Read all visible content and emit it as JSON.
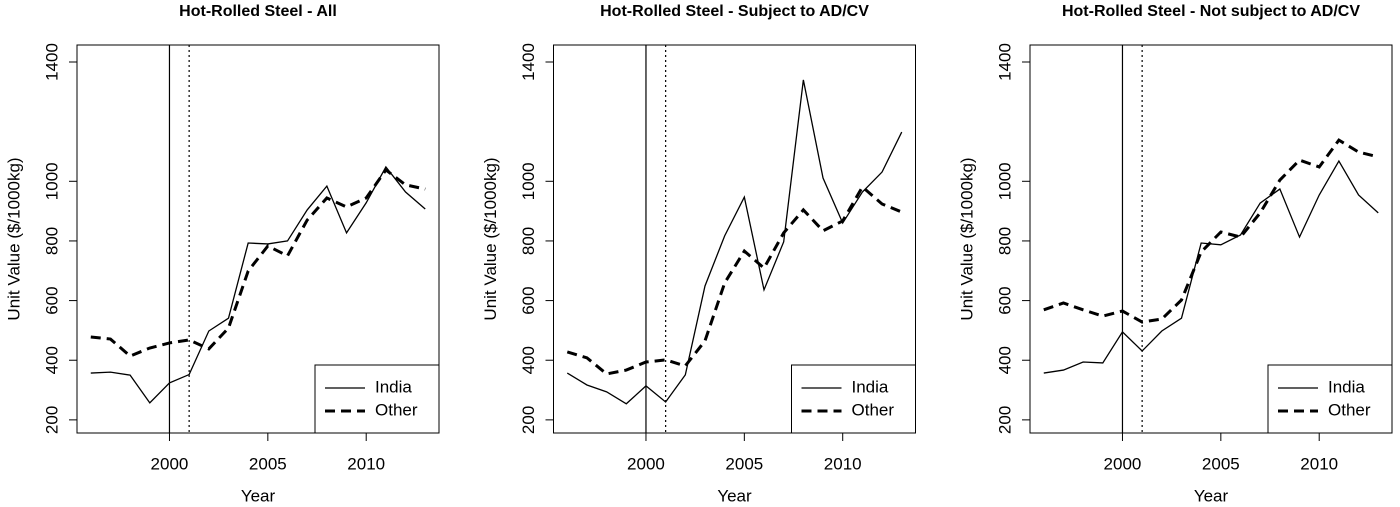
{
  "chart_data": [
    {
      "type": "line",
      "title": "Hot-Rolled Steel - All",
      "xlabel": "Year",
      "ylabel": "Unit Value ($/1000kg)",
      "x": [
        1996,
        1997,
        1998,
        1999,
        2000,
        2001,
        2002,
        2003,
        2004,
        2005,
        2006,
        2007,
        2008,
        2009,
        2010,
        2011,
        2012,
        2013
      ],
      "series": [
        {
          "name": "India",
          "color": "#000000",
          "dash": "solid",
          "values": [
            357,
            360,
            350,
            257,
            324,
            352,
            498,
            541,
            793,
            790,
            800,
            904,
            984,
            827,
            928,
            1048,
            964,
            907
          ]
        },
        {
          "name": "Other",
          "color": "#000000",
          "dash": "dashed",
          "values": [
            478,
            471,
            414,
            441,
            458,
            468,
            438,
            508,
            699,
            783,
            750,
            870,
            944,
            914,
            944,
            1038,
            988,
            974
          ]
        }
      ],
      "xlim": [
        1995.3,
        2013.7
      ],
      "ylim": [
        156,
        1457
      ],
      "xticks": [
        2000,
        2005,
        2010
      ],
      "yticks": [
        200,
        400,
        600,
        800,
        1000,
        1400
      ],
      "vlines": [
        {
          "x": 2000,
          "style": "solid"
        },
        {
          "x": 2001,
          "style": "dotted"
        }
      ],
      "legend": "bottom-right"
    },
    {
      "type": "line",
      "title": "Hot-Rolled Steel - Subject to AD/CV",
      "xlabel": "Year",
      "ylabel": "Unit Value ($/1000kg)",
      "x": [
        1996,
        1997,
        1998,
        1999,
        2000,
        2001,
        2002,
        2003,
        2004,
        2005,
        2006,
        2007,
        2008,
        2009,
        2010,
        2011,
        2012,
        2013
      ],
      "series": [
        {
          "name": "India",
          "color": "#000000",
          "dash": "solid",
          "values": [
            357,
            317,
            294,
            254,
            314,
            260,
            351,
            649,
            817,
            947,
            636,
            797,
            1340,
            1011,
            860,
            964,
            1031,
            1165
          ]
        },
        {
          "name": "Other",
          "color": "#000000",
          "dash": "dashed",
          "values": [
            428,
            408,
            354,
            367,
            394,
            401,
            381,
            465,
            659,
            766,
            709,
            827,
            904,
            834,
            867,
            981,
            924,
            897
          ]
        }
      ],
      "xlim": [
        1995.3,
        2013.7
      ],
      "ylim": [
        156,
        1457
      ],
      "xticks": [
        2000,
        2005,
        2010
      ],
      "yticks": [
        200,
        400,
        600,
        800,
        1000,
        1400
      ],
      "vlines": [
        {
          "x": 2000,
          "style": "solid"
        },
        {
          "x": 2001,
          "style": "dotted"
        }
      ],
      "legend": "bottom-right"
    },
    {
      "type": "line",
      "title": "Hot-Rolled Steel - Not subject to AD/CV",
      "xlabel": "Year",
      "ylabel": "Unit Value ($/1000kg)",
      "x": [
        1996,
        1997,
        1998,
        1999,
        2000,
        2001,
        2002,
        2003,
        2004,
        2005,
        2006,
        2007,
        2008,
        2009,
        2010,
        2011,
        2012,
        2013
      ],
      "series": [
        {
          "name": "India",
          "color": "#000000",
          "dash": "solid",
          "values": [
            357,
            367,
            394,
            391,
            495,
            431,
            498,
            541,
            793,
            787,
            820,
            927,
            974,
            813,
            954,
            1068,
            954,
            894
          ]
        },
        {
          "name": "Other",
          "color": "#000000",
          "dash": "dashed",
          "values": [
            569,
            592,
            569,
            548,
            565,
            528,
            538,
            602,
            763,
            830,
            813,
            894,
            1004,
            1071,
            1048,
            1138,
            1098,
            1082
          ]
        }
      ],
      "xlim": [
        1995.3,
        2013.7
      ],
      "ylim": [
        156,
        1457
      ],
      "xticks": [
        2000,
        2005,
        2010
      ],
      "yticks": [
        200,
        400,
        600,
        800,
        1000,
        1400
      ],
      "vlines": [
        {
          "x": 2000,
          "style": "solid"
        },
        {
          "x": 2001,
          "style": "dotted"
        }
      ],
      "legend": "bottom-right"
    }
  ]
}
